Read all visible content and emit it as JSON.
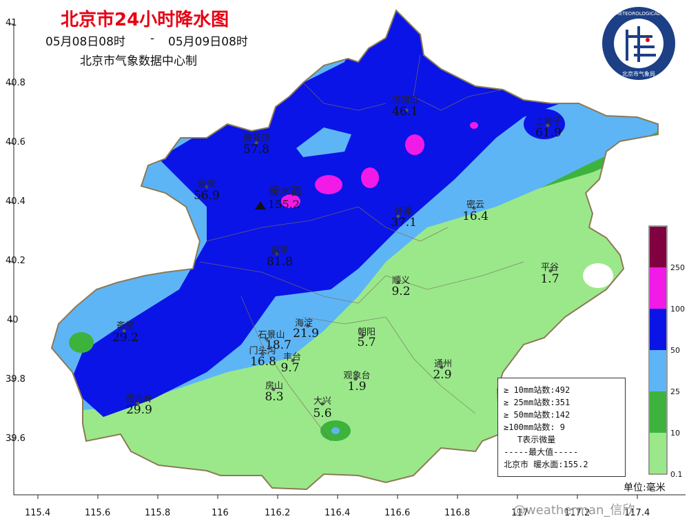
{
  "header": {
    "title": "北京市24小时降水图",
    "period_start": "05月08日08时",
    "period_sep": "-",
    "period_end": "05月09日08时",
    "producer": "北京市气象数据中心制"
  },
  "axes": {
    "y_ticks": [
      "41",
      "40.8",
      "40.6",
      "40.4",
      "40.2",
      "40",
      "39.8",
      "39.6"
    ],
    "x_ticks": [
      "115.4",
      "115.6",
      "115.8",
      "116",
      "116.2",
      "116.4",
      "116.6",
      "116.8",
      "117",
      "117.2",
      "117.4"
    ]
  },
  "stations": [
    {
      "name": "汤河口",
      "value": "46.1"
    },
    {
      "name": "上甸子",
      "value": "61.9"
    },
    {
      "name": "佛爷顶",
      "value": "57.8"
    },
    {
      "name": "延庆",
      "value": "56.9"
    },
    {
      "name": "暖水面",
      "value": "155.2"
    },
    {
      "name": "怀柔",
      "value": "37.1"
    },
    {
      "name": "密云",
      "value": "16.4"
    },
    {
      "name": "昌平",
      "value": "81.8"
    },
    {
      "name": "平谷",
      "value": "1.7"
    },
    {
      "name": "顺义",
      "value": "9.2"
    },
    {
      "name": "海淀",
      "value": "21.9"
    },
    {
      "name": "朝阳",
      "value": "5.7"
    },
    {
      "name": "斋堂",
      "value": "29.2"
    },
    {
      "name": "石景山",
      "value": "18.7"
    },
    {
      "name": "门头沟",
      "value": "16.8"
    },
    {
      "name": "丰台",
      "value": "9.7"
    },
    {
      "name": "通州",
      "value": "2.9"
    },
    {
      "name": "观象台",
      "value": "1.9"
    },
    {
      "name": "房山",
      "value": "8.3"
    },
    {
      "name": "霞云岭",
      "value": "29.9"
    },
    {
      "name": "大兴",
      "value": "5.6"
    }
  ],
  "summary": {
    "line1": "≥ 10mm站数:492",
    "line2": "≥ 25mm站数:351",
    "line3": "≥ 50mm站数:142",
    "line4": "≥100mm站数: 9",
    "line5": "T表示微量",
    "line6": "-----最大值-----",
    "line7": "北京市 暖水面:155.2"
  },
  "colorbar": {
    "levels": [
      "0.1",
      "10",
      "25",
      "50",
      "100",
      "250"
    ],
    "colors": [
      "#9be88a",
      "#3db33d",
      "#5eb5f5",
      "#0a14e6",
      "#f21ae6",
      "#800040"
    ]
  },
  "unit": "单位:毫米",
  "credit": "@weatherman_信欣",
  "logo": {
    "ring_text": "BEIJING METEOROLOGICAL SERVICE",
    "bottom_text": "北京市气象局"
  },
  "map_colors": {
    "lightgreen": "#9be88a",
    "green": "#3db33d",
    "lightblue": "#5eb5f5",
    "blue": "#0a14e6",
    "magenta": "#f21ae6",
    "border": "#8a7a55"
  }
}
